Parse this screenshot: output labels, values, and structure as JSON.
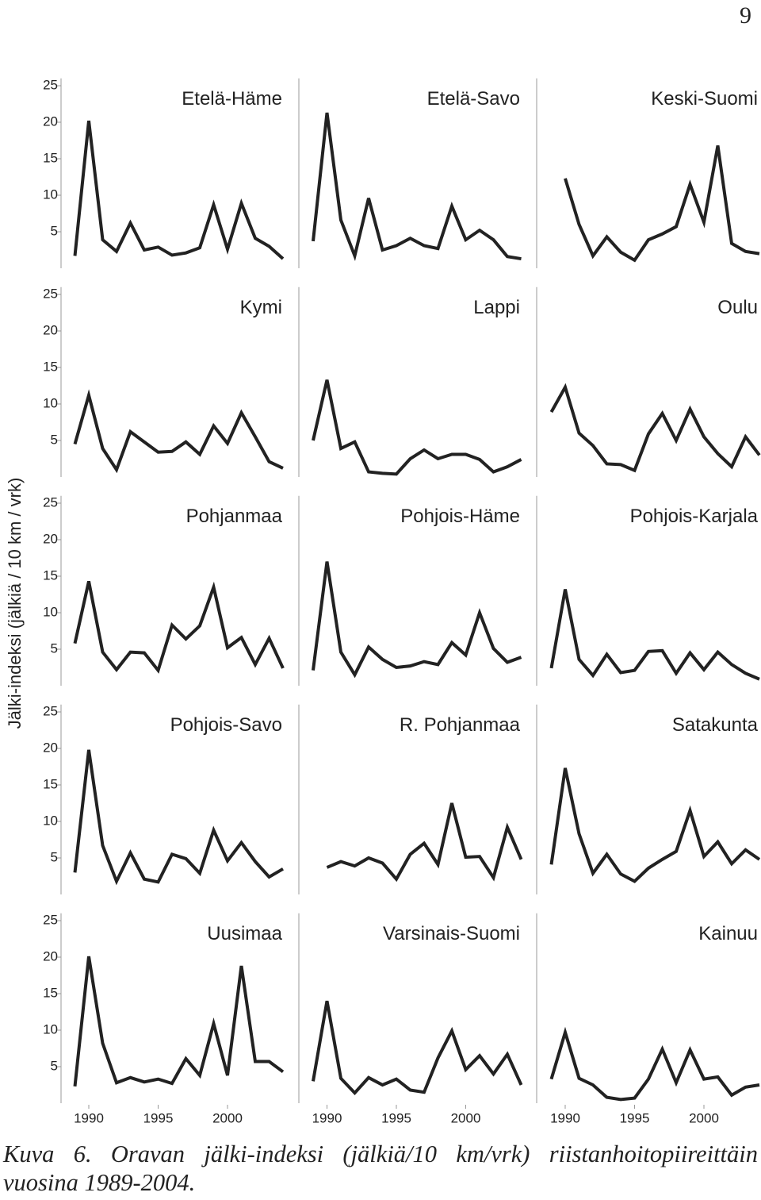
{
  "page_number": "9",
  "y_label": "Jälki-indeksi (jälkiä / 10 km / vrk)",
  "caption": "Kuva 6. Oravan jälki-indeksi (jälkiä/10 km/vrk) riistanhoitopiireittäin vuosina 1989-2004.",
  "chart_data": [
    {
      "type": "line",
      "title": "Etelä-Häme",
      "x": [
        1989,
        1990,
        1991,
        1992,
        1993,
        1994,
        1995,
        1996,
        1997,
        1998,
        1999,
        2000,
        2001,
        2002,
        2003,
        2004
      ],
      "values": [
        1.7,
        20.2,
        3.9,
        2.3,
        6.2,
        2.5,
        2.9,
        1.8,
        2.1,
        2.8,
        8.7,
        2.6,
        8.9,
        4.1,
        3.0,
        1.3
      ],
      "xlim": [
        1989,
        2004
      ],
      "ylim": [
        0,
        26
      ],
      "yticks": [
        5,
        10,
        15,
        20,
        25
      ],
      "color": "#222222"
    },
    {
      "type": "line",
      "title": "Etelä-Savo",
      "x": [
        1989,
        1990,
        1991,
        1992,
        1993,
        1994,
        1995,
        1996,
        1997,
        1998,
        1999,
        2000,
        2001,
        2002,
        2003,
        2004
      ],
      "values": [
        3.7,
        21.3,
        6.6,
        1.7,
        9.6,
        2.5,
        3.1,
        4.1,
        3.1,
        2.7,
        8.5,
        3.9,
        5.2,
        3.9,
        1.6,
        1.3
      ],
      "xlim": [
        1989,
        2004
      ],
      "ylim": [
        0,
        26
      ],
      "color": "#222222"
    },
    {
      "type": "line",
      "title": "Keski-Suomi",
      "x": [
        1989,
        1990,
        1991,
        1992,
        1993,
        1994,
        1995,
        1996,
        1997,
        1998,
        1999,
        2000,
        2001,
        2002,
        2003,
        2004
      ],
      "values": [
        null,
        12.3,
        6.0,
        1.7,
        4.3,
        2.2,
        1.1,
        3.9,
        4.7,
        5.7,
        11.5,
        6.3,
        16.8,
        3.4,
        2.3,
        2.0
      ],
      "xlim": [
        1989,
        2004
      ],
      "ylim": [
        0,
        26
      ],
      "color": "#222222"
    },
    {
      "type": "line",
      "title": "Kymi",
      "x": [
        1989,
        1990,
        1991,
        1992,
        1993,
        1994,
        1995,
        1996,
        1997,
        1998,
        1999,
        2000,
        2001,
        2002,
        2003,
        2004
      ],
      "values": [
        4.5,
        11.2,
        3.9,
        1.0,
        6.2,
        4.8,
        3.4,
        3.5,
        4.8,
        3.1,
        7.0,
        4.6,
        8.8,
        5.5,
        2.1,
        1.2
      ],
      "xlim": [
        1989,
        2004
      ],
      "ylim": [
        0,
        26
      ],
      "yticks": [
        5,
        10,
        15,
        20,
        25
      ],
      "color": "#222222"
    },
    {
      "type": "line",
      "title": "Lappi",
      "x": [
        1989,
        1990,
        1991,
        1992,
        1993,
        1994,
        1995,
        1996,
        1997,
        1998,
        1999,
        2000,
        2001,
        2002,
        2003,
        2004
      ],
      "values": [
        5.0,
        13.3,
        3.9,
        4.8,
        0.7,
        0.5,
        0.4,
        2.5,
        3.7,
        2.5,
        3.1,
        3.1,
        2.4,
        0.7,
        1.4,
        2.4
      ],
      "xlim": [
        1989,
        2004
      ],
      "ylim": [
        0,
        26
      ],
      "color": "#222222"
    },
    {
      "type": "line",
      "title": "Oulu",
      "x": [
        1989,
        1990,
        1991,
        1992,
        1993,
        1994,
        1995,
        1996,
        1997,
        1998,
        1999,
        2000,
        2001,
        2002,
        2003,
        2004
      ],
      "values": [
        8.9,
        12.3,
        6.0,
        4.3,
        1.8,
        1.7,
        0.9,
        5.9,
        8.7,
        5.0,
        9.3,
        5.5,
        3.2,
        1.4,
        5.5,
        3.0
      ],
      "xlim": [
        1989,
        2004
      ],
      "ylim": [
        0,
        26
      ],
      "color": "#222222"
    },
    {
      "type": "line",
      "title": "Pohjanmaa",
      "x": [
        1989,
        1990,
        1991,
        1992,
        1993,
        1994,
        1995,
        1996,
        1997,
        1998,
        1999,
        2000,
        2001,
        2002,
        2003,
        2004
      ],
      "values": [
        5.8,
        14.3,
        4.6,
        2.2,
        4.6,
        4.5,
        2.1,
        8.3,
        6.4,
        8.2,
        13.5,
        5.2,
        6.6,
        2.9,
        6.5,
        2.4
      ],
      "xlim": [
        1989,
        2004
      ],
      "ylim": [
        0,
        26
      ],
      "yticks": [
        5,
        10,
        15,
        20,
        25
      ],
      "color": "#222222"
    },
    {
      "type": "line",
      "title": "Pohjois-Häme",
      "x": [
        1989,
        1990,
        1991,
        1992,
        1993,
        1994,
        1995,
        1996,
        1997,
        1998,
        1999,
        2000,
        2001,
        2002,
        2003,
        2004
      ],
      "values": [
        2.1,
        17.0,
        4.6,
        1.5,
        5.3,
        3.6,
        2.5,
        2.7,
        3.3,
        2.9,
        5.9,
        4.2,
        10.0,
        5.1,
        3.2,
        3.9
      ],
      "xlim": [
        1989,
        2004
      ],
      "ylim": [
        0,
        26
      ],
      "color": "#222222"
    },
    {
      "type": "line",
      "title": "Pohjois-Karjala",
      "x": [
        1989,
        1990,
        1991,
        1992,
        1993,
        1994,
        1995,
        1996,
        1997,
        1998,
        1999,
        2000,
        2001,
        2002,
        2003,
        2004
      ],
      "values": [
        2.4,
        13.2,
        3.6,
        1.4,
        4.3,
        1.8,
        2.1,
        4.7,
        4.8,
        1.7,
        4.5,
        2.2,
        4.6,
        2.9,
        1.7,
        0.9
      ],
      "xlim": [
        1989,
        2004
      ],
      "ylim": [
        0,
        26
      ],
      "color": "#222222"
    },
    {
      "type": "line",
      "title": "Pohjois-Savo",
      "x": [
        1989,
        1990,
        1991,
        1992,
        1993,
        1994,
        1995,
        1996,
        1997,
        1998,
        1999,
        2000,
        2001,
        2002,
        2003,
        2004
      ],
      "values": [
        3.0,
        19.8,
        6.7,
        1.8,
        5.7,
        2.1,
        1.7,
        5.5,
        4.9,
        2.9,
        8.8,
        4.6,
        7.1,
        4.5,
        2.4,
        3.5
      ],
      "xlim": [
        1989,
        2004
      ],
      "ylim": [
        0,
        26
      ],
      "yticks": [
        5,
        10,
        15,
        20,
        25
      ],
      "color": "#222222"
    },
    {
      "type": "line",
      "title": "R. Pohjanmaa",
      "x": [
        1989,
        1990,
        1991,
        1992,
        1993,
        1994,
        1995,
        1996,
        1997,
        1998,
        1999,
        2000,
        2001,
        2002,
        2003,
        2004
      ],
      "values": [
        null,
        3.7,
        4.5,
        3.9,
        5.0,
        4.3,
        2.1,
        5.5,
        7.0,
        4.1,
        12.5,
        5.1,
        5.2,
        2.3,
        9.2,
        4.8
      ],
      "xlim": [
        1989,
        2004
      ],
      "ylim": [
        0,
        26
      ],
      "color": "#222222"
    },
    {
      "type": "line",
      "title": "Satakunta",
      "x": [
        1989,
        1990,
        1991,
        1992,
        1993,
        1994,
        1995,
        1996,
        1997,
        1998,
        1999,
        2000,
        2001,
        2002,
        2003,
        2004
      ],
      "values": [
        4.1,
        17.3,
        8.3,
        2.9,
        5.5,
        2.8,
        1.8,
        3.6,
        4.8,
        5.9,
        11.5,
        5.2,
        7.2,
        4.2,
        6.1,
        4.8
      ],
      "xlim": [
        1989,
        2004
      ],
      "ylim": [
        0,
        26
      ],
      "color": "#222222"
    },
    {
      "type": "line",
      "title": "Uusimaa",
      "x": [
        1989,
        1990,
        1991,
        1992,
        1993,
        1994,
        1995,
        1996,
        1997,
        1998,
        1999,
        2000,
        2001,
        2002,
        2003,
        2004
      ],
      "values": [
        2.3,
        20.1,
        8.2,
        2.8,
        3.5,
        2.9,
        3.3,
        2.7,
        6.1,
        3.8,
        10.9,
        3.8,
        18.8,
        5.7,
        5.7,
        4.3
      ],
      "xlim": [
        1989,
        2004
      ],
      "ylim": [
        0,
        26
      ],
      "yticks": [
        5,
        10,
        15,
        20,
        25
      ],
      "xticks": [
        1990,
        1995,
        2000
      ],
      "color": "#222222"
    },
    {
      "type": "line",
      "title": "Varsinais-Suomi",
      "x": [
        1989,
        1990,
        1991,
        1992,
        1993,
        1994,
        1995,
        1996,
        1997,
        1998,
        1999,
        2000,
        2001,
        2002,
        2003,
        2004
      ],
      "values": [
        3.0,
        14.0,
        3.4,
        1.4,
        3.5,
        2.5,
        3.3,
        1.8,
        1.5,
        6.2,
        9.9,
        4.6,
        6.5,
        4.0,
        6.7,
        2.5
      ],
      "xlim": [
        1989,
        2004
      ],
      "ylim": [
        0,
        26
      ],
      "xticks": [
        1990,
        1995,
        2000
      ],
      "color": "#222222"
    },
    {
      "type": "line",
      "title": "Kainuu",
      "x": [
        1989,
        1990,
        1991,
        1992,
        1993,
        1994,
        1995,
        1996,
        1997,
        1998,
        1999,
        2000,
        2001,
        2002,
        2003,
        2004
      ],
      "values": [
        3.3,
        9.7,
        3.4,
        2.5,
        0.8,
        0.5,
        0.7,
        3.3,
        7.4,
        2.8,
        7.3,
        3.3,
        3.6,
        1.1,
        2.2,
        2.5
      ],
      "xlim": [
        1989,
        2004
      ],
      "ylim": [
        0,
        26
      ],
      "xticks": [
        1990,
        1995,
        2000
      ],
      "color": "#222222"
    }
  ]
}
